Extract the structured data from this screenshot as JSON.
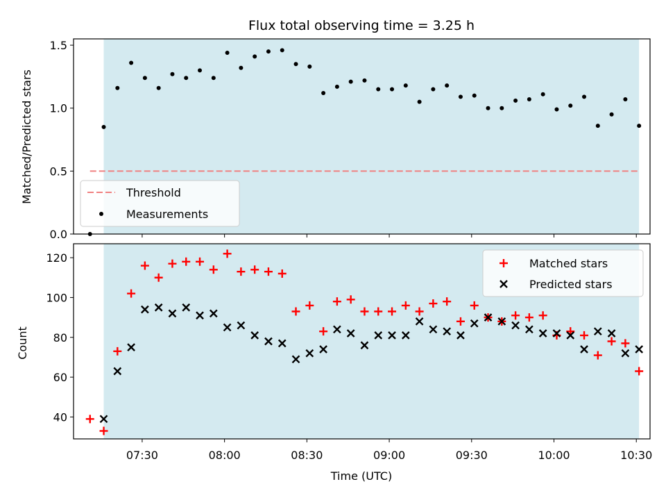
{
  "chart_data": [
    {
      "type": "scatter",
      "title": "Flux total observing time = 3.25 h",
      "xlabel": "",
      "ylabel": "Matched/Predicted stars",
      "ylim": [
        0,
        1.55
      ],
      "yticks": [
        "0.0",
        "0.5",
        "1.0",
        "1.5"
      ],
      "ytick_values": [
        0,
        0.5,
        1.0,
        1.5
      ],
      "xlim": [
        "07:05",
        "10:35"
      ],
      "shaded_region": {
        "start": "07:16",
        "end": "10:31",
        "color": "#d4eaf0"
      },
      "threshold": {
        "name": "Threshold",
        "value": 0.5,
        "x_start": "07:11",
        "x_end": "10:31",
        "color": "#f08080"
      },
      "legend": {
        "position": "lower-left",
        "entries": [
          "Threshold",
          "Measurements"
        ]
      },
      "series": [
        {
          "name": "Measurements",
          "marker": "dot",
          "color": "#000000",
          "x": [
            "07:11",
            "07:16",
            "07:21",
            "07:26",
            "07:31",
            "07:36",
            "07:41",
            "07:46",
            "07:51",
            "07:56",
            "08:01",
            "08:06",
            "08:11",
            "08:16",
            "08:21",
            "08:26",
            "08:31",
            "08:36",
            "08:41",
            "08:46",
            "08:51",
            "08:56",
            "09:01",
            "09:06",
            "09:11",
            "09:16",
            "09:21",
            "09:26",
            "09:31",
            "09:36",
            "09:41",
            "09:46",
            "09:51",
            "09:56",
            "10:01",
            "10:06",
            "10:11",
            "10:16",
            "10:21",
            "10:26",
            "10:31"
          ],
          "y": [
            0.0,
            0.85,
            1.16,
            1.36,
            1.24,
            1.16,
            1.27,
            1.24,
            1.3,
            1.24,
            1.44,
            1.32,
            1.41,
            1.45,
            1.46,
            1.35,
            1.33,
            1.12,
            1.17,
            1.21,
            1.22,
            1.15,
            1.15,
            1.18,
            1.05,
            1.15,
            1.18,
            1.09,
            1.1,
            1.0,
            1.0,
            1.06,
            1.07,
            1.11,
            0.99,
            1.02,
            1.09,
            0.86,
            0.95,
            1.07,
            0.86
          ]
        }
      ]
    },
    {
      "type": "scatter",
      "title": "",
      "xlabel": "Time (UTC)",
      "ylabel": "Count",
      "ylim": [
        29,
        127
      ],
      "yticks": [
        "40",
        "60",
        "80",
        "100",
        "120"
      ],
      "ytick_values": [
        40,
        60,
        80,
        100,
        120
      ],
      "xlim": [
        "07:05",
        "10:35"
      ],
      "xticks": [
        "07:30",
        "08:00",
        "08:30",
        "09:00",
        "09:30",
        "10:00",
        "10:30"
      ],
      "shaded_region": {
        "start": "07:16",
        "end": "10:31",
        "color": "#d4eaf0"
      },
      "legend": {
        "position": "top-right",
        "entries": [
          "Matched stars",
          "Predicted stars"
        ]
      },
      "series": [
        {
          "name": "Matched stars",
          "marker": "plus",
          "color": "#ff0000",
          "x": [
            "07:11",
            "07:16",
            "07:21",
            "07:26",
            "07:31",
            "07:36",
            "07:41",
            "07:46",
            "07:51",
            "07:56",
            "08:01",
            "08:06",
            "08:11",
            "08:16",
            "08:21",
            "08:26",
            "08:31",
            "08:36",
            "08:41",
            "08:46",
            "08:51",
            "08:56",
            "09:01",
            "09:06",
            "09:11",
            "09:16",
            "09:21",
            "09:26",
            "09:31",
            "09:36",
            "09:41",
            "09:46",
            "09:51",
            "09:56",
            "10:01",
            "10:06",
            "10:11",
            "10:16",
            "10:21",
            "10:26",
            "10:31"
          ],
          "y": [
            39,
            33,
            73,
            102,
            116,
            110,
            117,
            118,
            118,
            114,
            122,
            113,
            114,
            113,
            112,
            93,
            96,
            83,
            98,
            99,
            93,
            93,
            93,
            96,
            93,
            97,
            98,
            88,
            96,
            90,
            88,
            91,
            90,
            91,
            81,
            83,
            81,
            71,
            78,
            77,
            63
          ]
        },
        {
          "name": "Predicted stars",
          "marker": "x",
          "color": "#000000",
          "x": [
            "07:16",
            "07:21",
            "07:26",
            "07:31",
            "07:36",
            "07:41",
            "07:46",
            "07:51",
            "07:56",
            "08:01",
            "08:06",
            "08:11",
            "08:16",
            "08:21",
            "08:26",
            "08:31",
            "08:36",
            "08:41",
            "08:46",
            "08:51",
            "08:56",
            "09:01",
            "09:06",
            "09:11",
            "09:16",
            "09:21",
            "09:26",
            "09:31",
            "09:36",
            "09:41",
            "09:46",
            "09:51",
            "09:56",
            "10:01",
            "10:06",
            "10:11",
            "10:16",
            "10:21",
            "10:26",
            "10:31"
          ],
          "y": [
            39,
            63,
            75,
            94,
            95,
            92,
            95,
            91,
            92,
            85,
            86,
            81,
            78,
            77,
            69,
            72,
            74,
            84,
            82,
            76,
            81,
            81,
            81,
            88,
            84,
            83,
            81,
            87,
            90,
            88,
            86,
            84,
            82,
            82,
            81,
            74,
            83,
            82,
            72,
            74
          ]
        }
      ]
    }
  ]
}
